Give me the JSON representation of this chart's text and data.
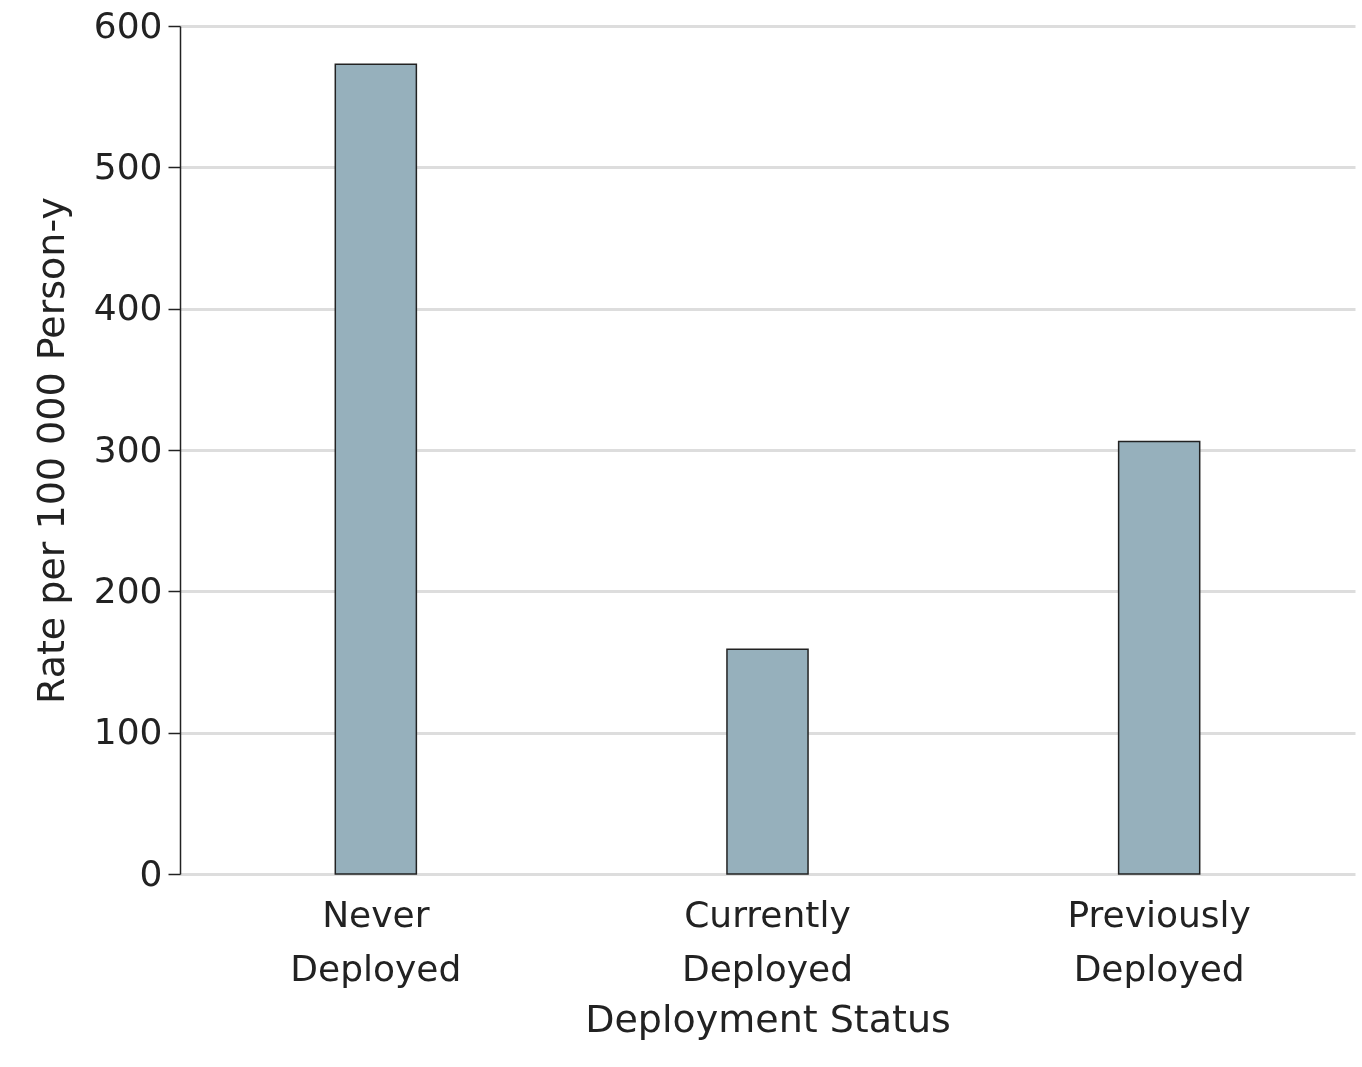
{
  "chart_data": {
    "type": "bar",
    "xlabel": "Deployment Status",
    "ylabel": "Rate per 100 000 Person-y",
    "categories": [
      "Never Deployed",
      "Currently Deployed",
      "Previously Deployed"
    ],
    "values": [
      573,
      159,
      306
    ],
    "color": "#96b0bc",
    "ylim": [
      0,
      600
    ],
    "yticks": [
      0,
      100,
      200,
      300,
      400,
      500,
      600
    ],
    "grid": "y"
  }
}
